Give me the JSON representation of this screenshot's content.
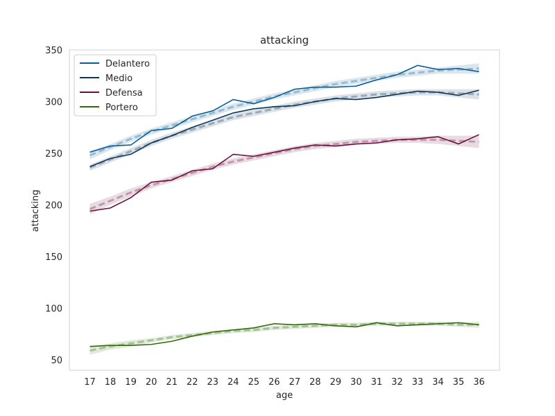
{
  "chart_data": {
    "type": "line",
    "title": "attacking",
    "xlabel": "age",
    "ylabel": "attacking",
    "x": [
      17,
      18,
      19,
      20,
      21,
      22,
      23,
      24,
      25,
      26,
      27,
      28,
      29,
      30,
      31,
      32,
      33,
      34,
      35,
      36
    ],
    "xlim": [
      16,
      37
    ],
    "ylim": [
      40,
      350
    ],
    "yticks": [
      50,
      100,
      150,
      200,
      250,
      300,
      350
    ],
    "grid": false,
    "legend_position": "top-left",
    "series": [
      {
        "name": "Delantero",
        "color": "#0b5c96",
        "values": [
          251,
          257,
          258,
          272,
          274,
          286,
          291,
          302,
          298,
          304,
          312,
          314,
          314,
          315,
          321,
          326,
          335,
          331,
          332,
          329
        ],
        "trend": [
          248,
          256,
          264,
          271,
          277,
          283,
          289,
          295,
          300,
          305,
          309,
          313,
          317,
          320,
          323,
          326,
          328,
          330,
          331,
          332
        ],
        "band": [
          4,
          3,
          3,
          3,
          3,
          3,
          3,
          3,
          3,
          3,
          3,
          3,
          3,
          3,
          3,
          3,
          3,
          3,
          4,
          5
        ]
      },
      {
        "name": "Medio",
        "color": "#0c3558",
        "values": [
          237,
          245,
          249,
          260,
          267,
          275,
          282,
          289,
          293,
          295,
          296,
          300,
          303,
          302,
          304,
          307,
          310,
          309,
          306,
          311
        ],
        "trend": [
          236,
          244,
          252,
          260,
          267,
          273,
          279,
          285,
          289,
          293,
          297,
          300,
          303,
          305,
          307,
          308,
          309,
          309,
          308,
          307
        ],
        "band": [
          3,
          3,
          3,
          3,
          3,
          3,
          3,
          3,
          3,
          3,
          3,
          3,
          3,
          3,
          3,
          3,
          3,
          3,
          4,
          5
        ]
      },
      {
        "name": "Defensa",
        "color": "#6b0c3c",
        "values": [
          194,
          197,
          207,
          222,
          224,
          233,
          235,
          249,
          247,
          251,
          255,
          258,
          257,
          259,
          260,
          263,
          264,
          266,
          259,
          268
        ],
        "trend": [
          196,
          204,
          212,
          219,
          225,
          231,
          237,
          242,
          246,
          250,
          254,
          257,
          259,
          261,
          262,
          263,
          263,
          263,
          262,
          261
        ],
        "band": [
          5,
          4,
          4,
          3,
          3,
          3,
          3,
          3,
          3,
          3,
          3,
          3,
          3,
          3,
          3,
          3,
          3,
          4,
          5,
          6
        ]
      },
      {
        "name": "Portero",
        "color": "#2f6b08",
        "values": [
          63,
          64,
          64,
          65,
          68,
          73,
          77,
          79,
          81,
          85,
          84,
          85,
          83,
          82,
          86,
          83,
          84,
          85,
          86,
          84
        ],
        "trend": [
          59,
          63,
          66,
          69,
          72,
          74,
          76,
          78,
          79,
          81,
          82,
          83,
          84,
          84,
          85,
          85,
          85,
          85,
          84,
          84
        ],
        "band": [
          4,
          3,
          3,
          2,
          2,
          2,
          2,
          2,
          2,
          2,
          2,
          2,
          2,
          2,
          2,
          2,
          2,
          2,
          2,
          3
        ]
      }
    ]
  }
}
